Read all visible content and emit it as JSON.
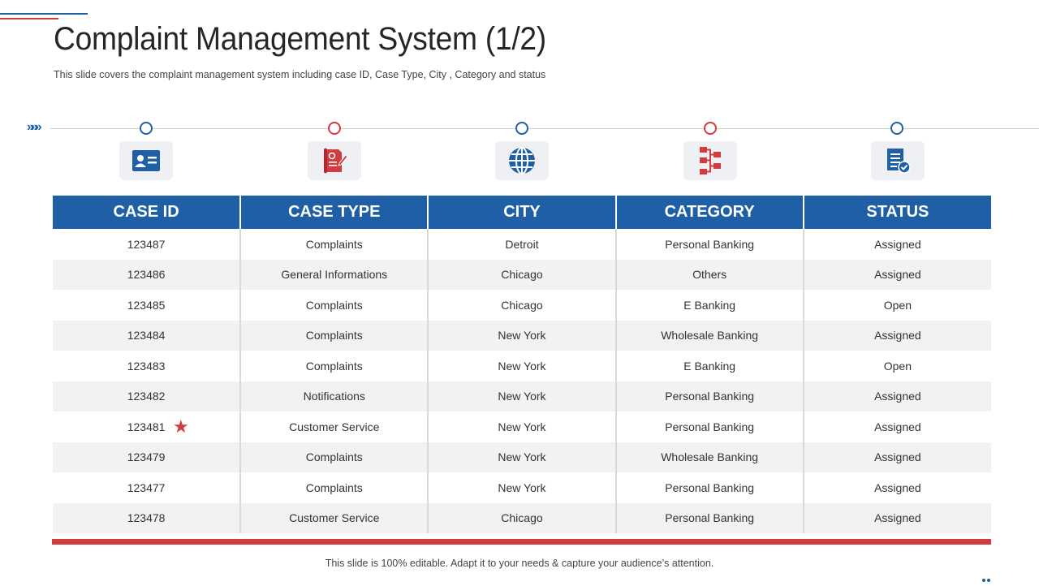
{
  "slide": {
    "title": "Complaint Management System (1/2)",
    "subtitle": "This slide covers the complaint management system including case ID, Case Type, City , Category and status",
    "footer": "This slide is 100% editable. Adapt it to your needs & capture your audience’s attention."
  },
  "timeline": {
    "chevrons": "»»»",
    "icons": [
      "id-card-icon",
      "document-edit-icon",
      "globe-icon",
      "hierarchy-icon",
      "checklist-icon"
    ]
  },
  "table": {
    "headers": [
      "CASE ID",
      "CASE TYPE",
      "CITY",
      "CATEGORY",
      "STATUS"
    ],
    "rows": [
      [
        "123487",
        "Complaints",
        "Detroit",
        "Personal Banking",
        "Assigned"
      ],
      [
        "123486",
        "General Informations",
        "Chicago",
        "Others",
        "Assigned"
      ],
      [
        "123485",
        "Complaints",
        "Chicago",
        "E Banking",
        "Open"
      ],
      [
        "123484",
        "Complaints",
        "New York",
        "Wholesale Banking",
        "Assigned"
      ],
      [
        "123483",
        "Complaints",
        "New York",
        "E Banking",
        "Open"
      ],
      [
        "123482",
        "Notifications",
        "New York",
        "Personal Banking",
        "Assigned"
      ],
      [
        "123481",
        "Customer Service",
        "New York",
        "Personal Banking",
        "Assigned"
      ],
      [
        "123479",
        "Complaints",
        "New York",
        "Wholesale Banking",
        "Assigned"
      ],
      [
        "123477",
        "Complaints",
        "New York",
        "Personal Banking",
        "Assigned"
      ],
      [
        "123478",
        "Customer Service",
        "Chicago",
        "Personal Banking",
        "Assigned"
      ]
    ],
    "starred_row": "123481"
  },
  "colors": {
    "primary_blue": "#1f5fa5",
    "accent_red": "#d23c40",
    "row_alt": "#f2f2f2"
  }
}
